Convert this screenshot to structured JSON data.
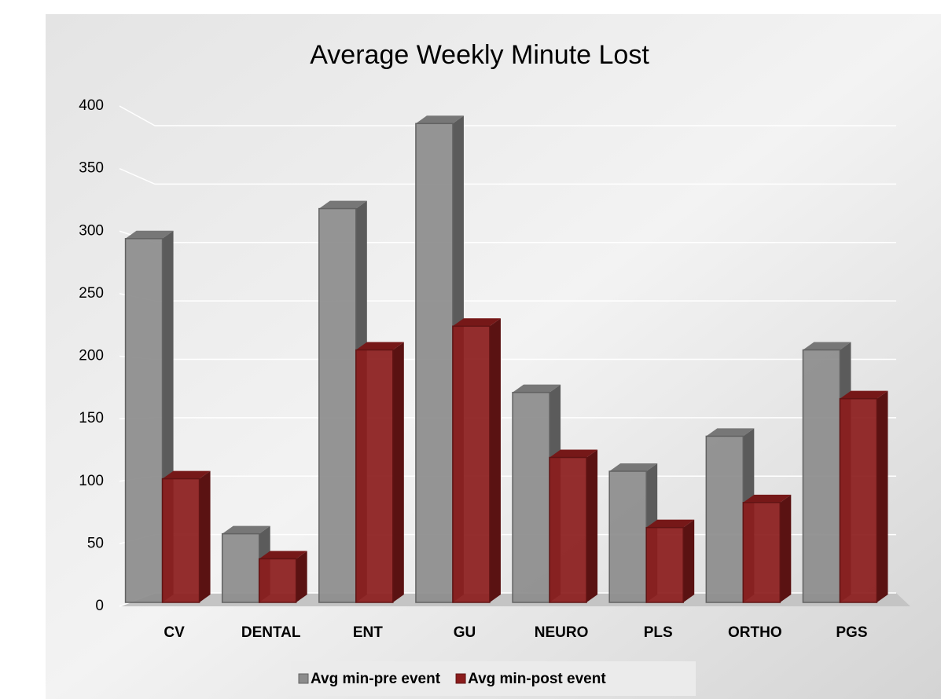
{
  "chart_data": {
    "type": "bar3d",
    "title": "Average Weekly Minute Lost",
    "categories": [
      "CV",
      "DENTAL",
      "ENT",
      "GU",
      "NEURO",
      "PLS",
      "ORTHO",
      "PGS"
    ],
    "series": [
      {
        "name": "Avg min-pre event",
        "color": "#8c8c8c",
        "values": [
          294,
          58,
          318,
          386,
          171,
          108,
          136,
          205
        ]
      },
      {
        "name": "Avg min-post event",
        "color": "#8b1c1c",
        "values": [
          102,
          38,
          205,
          224,
          119,
          63,
          83,
          166
        ]
      }
    ],
    "ylim": [
      0,
      400
    ],
    "yticks": [
      0,
      50,
      100,
      150,
      200,
      250,
      300,
      350,
      400
    ],
    "grid": true,
    "legend": "bottom"
  }
}
